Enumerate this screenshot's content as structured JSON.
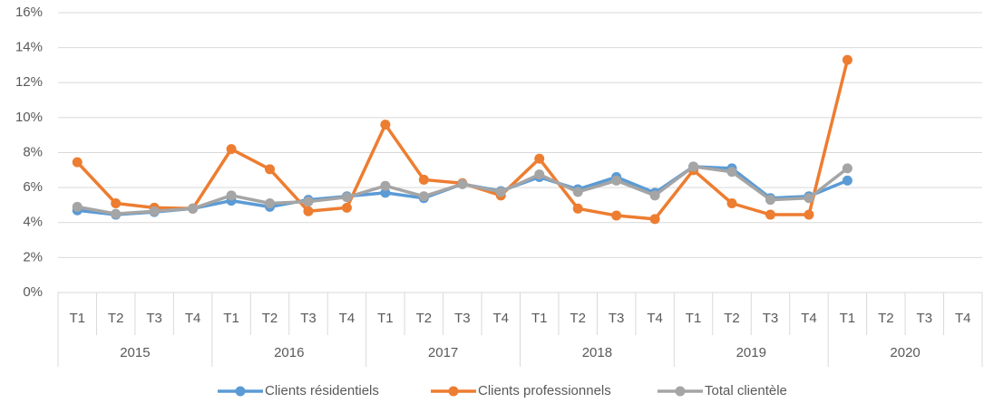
{
  "chart_data": {
    "type": "line",
    "categories": [
      "T1",
      "T2",
      "T3",
      "T4",
      "T1",
      "T2",
      "T3",
      "T4",
      "T1",
      "T2",
      "T3",
      "T4",
      "T1",
      "T2",
      "T3",
      "T4",
      "T1",
      "T2",
      "T3",
      "T4",
      "T1",
      "T2",
      "T3",
      "T4"
    ],
    "category_groups": [
      "2015",
      "2016",
      "2017",
      "2018",
      "2019",
      "2020"
    ],
    "series": [
      {
        "name": "Clients résidentiels",
        "color": "#5b9bd5",
        "values": [
          4.7,
          4.45,
          4.6,
          4.8,
          5.25,
          4.9,
          5.3,
          5.5,
          5.7,
          5.4,
          6.2,
          5.8,
          6.6,
          5.9,
          6.6,
          5.7,
          7.2,
          7.1,
          5.4,
          5.5,
          6.4,
          null,
          null,
          null
        ]
      },
      {
        "name": "Clients professionnels",
        "color": "#ed7d31",
        "values": [
          7.45,
          5.1,
          4.85,
          4.8,
          8.2,
          7.05,
          4.65,
          4.85,
          9.6,
          6.45,
          6.25,
          5.55,
          7.65,
          4.8,
          4.4,
          4.2,
          7.0,
          5.1,
          4.45,
          4.45,
          13.3,
          null,
          null,
          null
        ]
      },
      {
        "name": "Total clientèle",
        "color": "#a5a5a5",
        "values": [
          4.9,
          4.5,
          4.65,
          4.8,
          5.55,
          5.1,
          5.2,
          5.45,
          6.1,
          5.5,
          6.2,
          5.75,
          6.75,
          5.75,
          6.4,
          5.55,
          7.2,
          6.9,
          5.3,
          5.4,
          7.1,
          null,
          null,
          null
        ]
      }
    ],
    "ylim": [
      0,
      16
    ],
    "yticks": [
      {
        "value": 0,
        "label": "0%"
      },
      {
        "value": 2,
        "label": "2%"
      },
      {
        "value": 4,
        "label": "4%"
      },
      {
        "value": 6,
        "label": "6%"
      },
      {
        "value": 8,
        "label": "8%"
      },
      {
        "value": 10,
        "label": "10%"
      },
      {
        "value": 12,
        "label": "12%"
      },
      {
        "value": 14,
        "label": "14%"
      },
      {
        "value": 16,
        "label": "16%"
      }
    ],
    "grid": true
  }
}
